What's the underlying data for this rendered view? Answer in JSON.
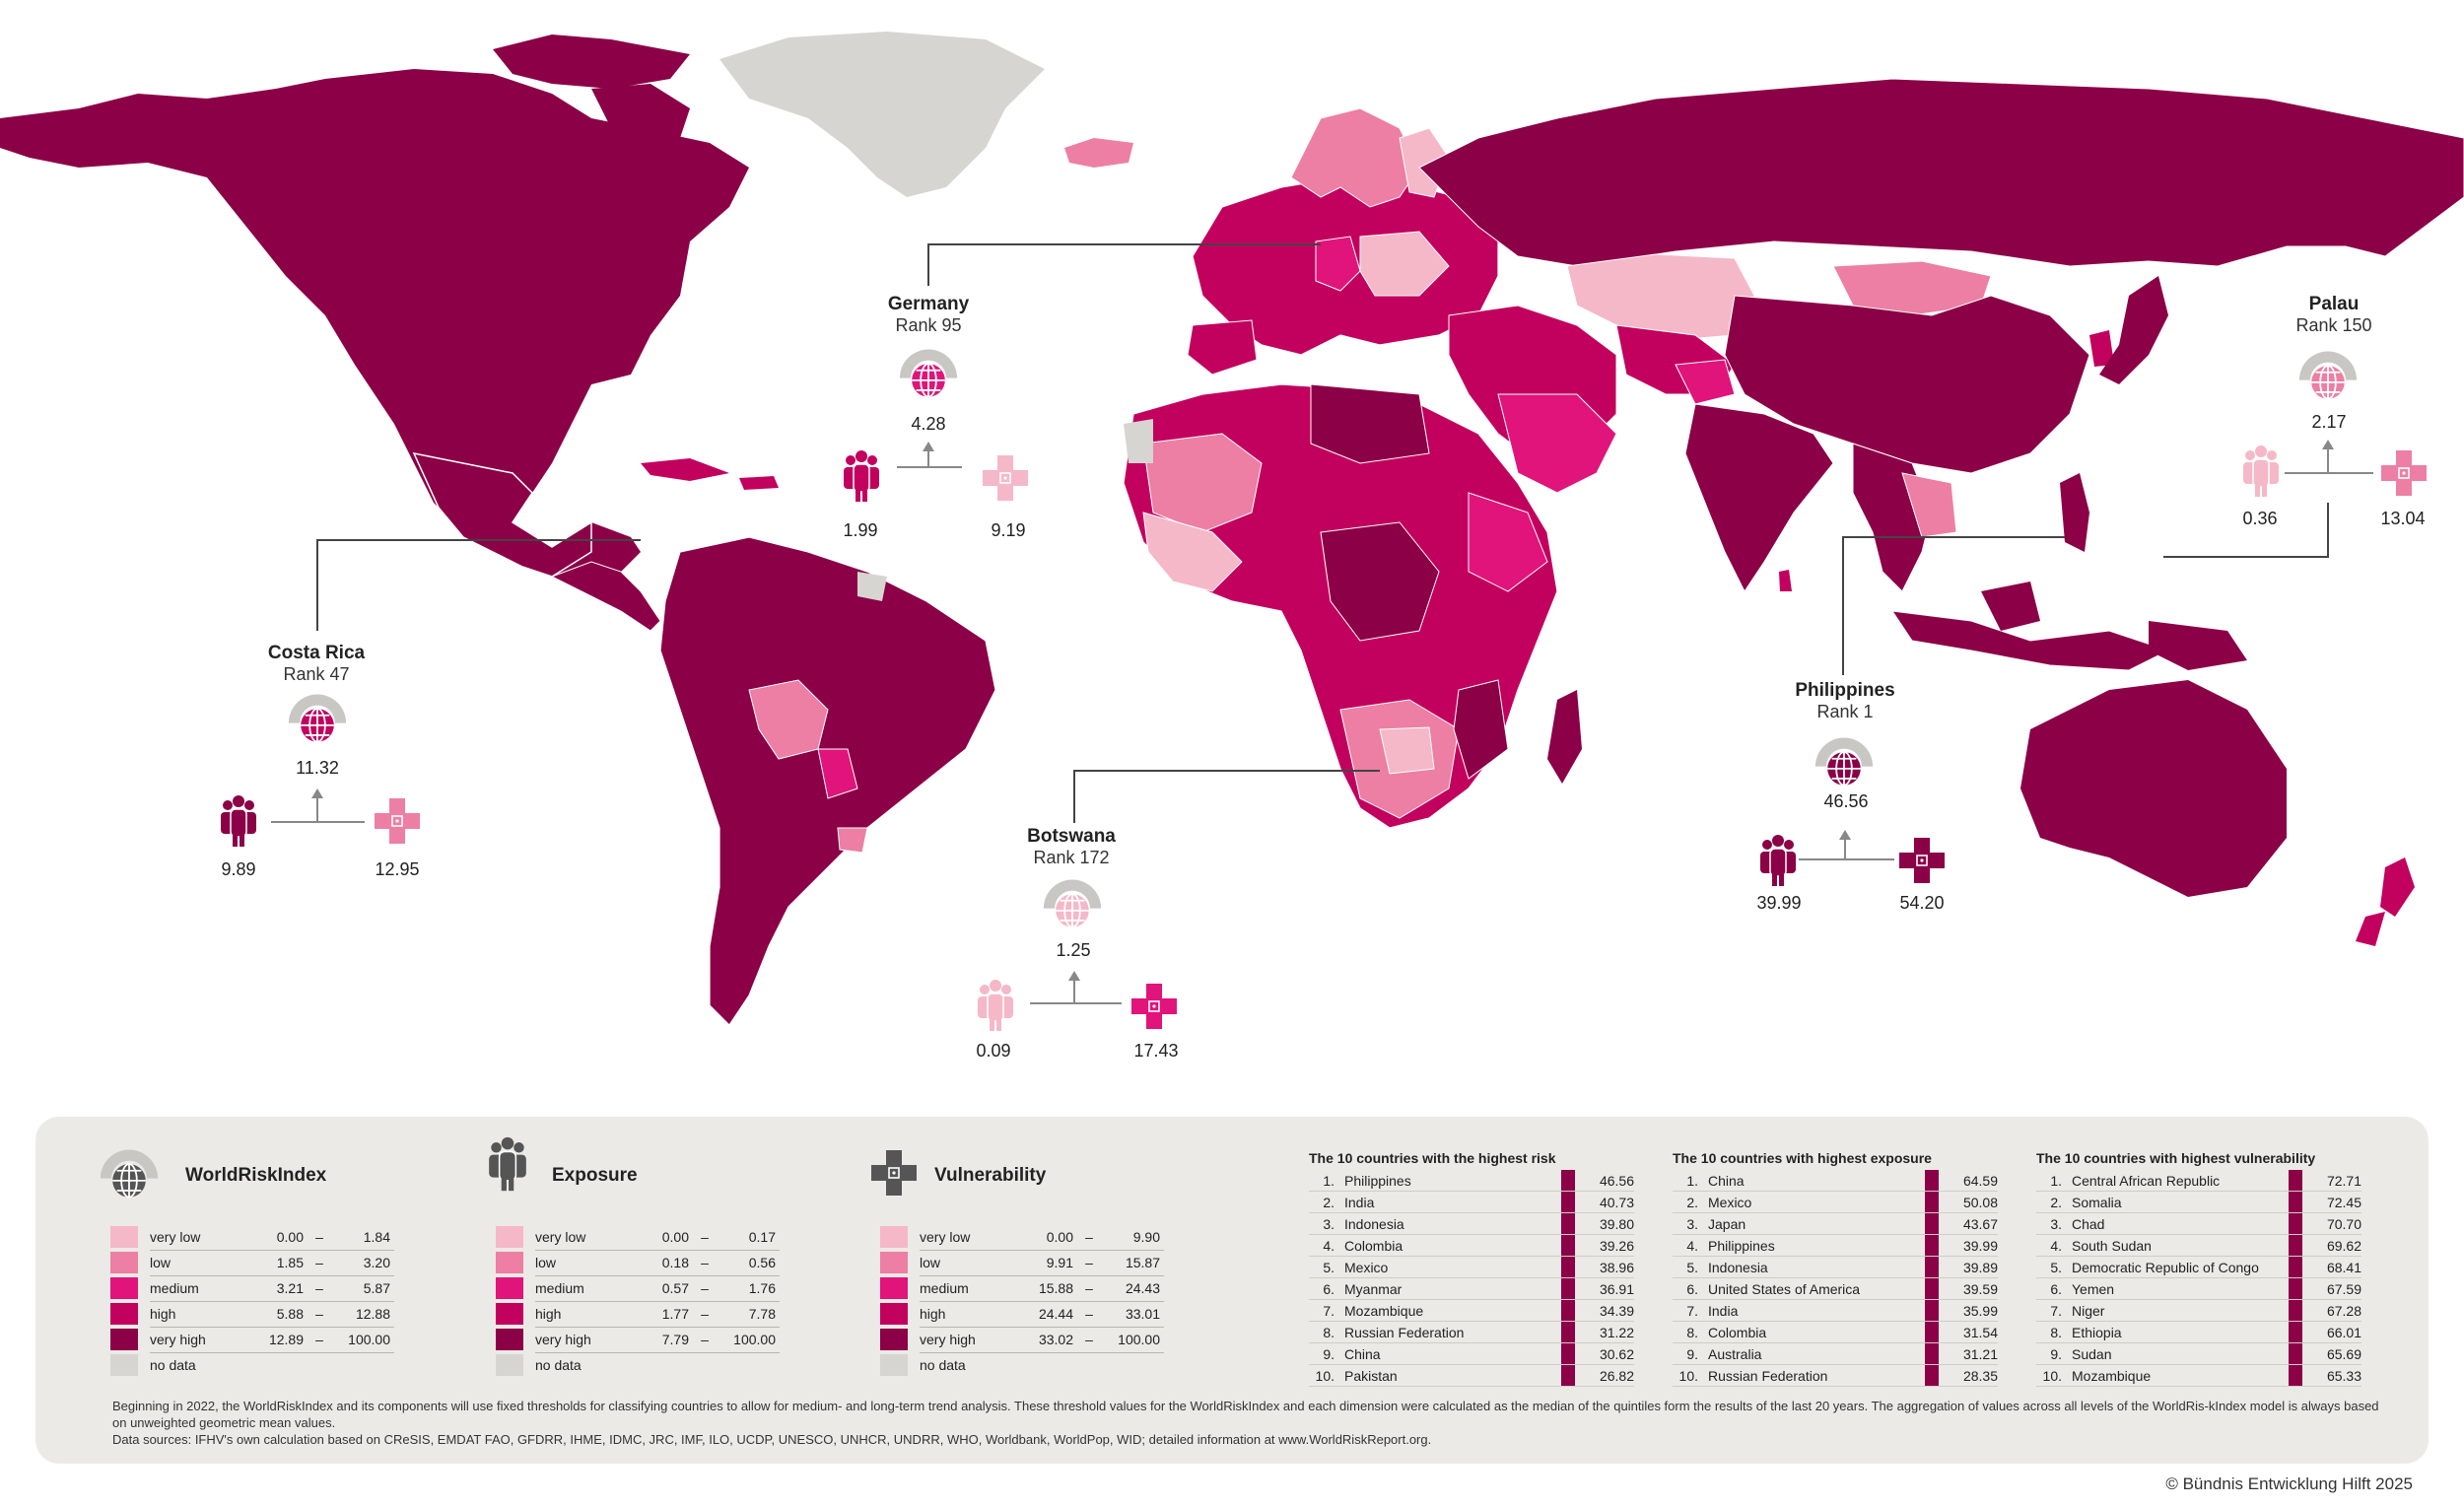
{
  "colors": {
    "very_low": "#f5b8c8",
    "low": "#ec7fa3",
    "medium": "#e0147a",
    "high": "#c2005e",
    "very_high": "#8b0046",
    "no_data": "#d7d5d1"
  },
  "callouts": {
    "germany": {
      "name": "Germany",
      "rank": "Rank 95",
      "wri": "4.28",
      "exposure": "1.99",
      "vulnerability": "9.19"
    },
    "costa_rica": {
      "name": "Costa Rica",
      "rank": "Rank 47",
      "wri": "11.32",
      "exposure": "9.89",
      "vulnerability": "12.95"
    },
    "botswana": {
      "name": "Botswana",
      "rank": "Rank 172",
      "wri": "1.25",
      "exposure": "0.09",
      "vulnerability": "17.43"
    },
    "philippines": {
      "name": "Philippines",
      "rank": "Rank 1",
      "wri": "46.56",
      "exposure": "39.99",
      "vulnerability": "54.20"
    },
    "palau": {
      "name": "Palau",
      "rank": "Rank 150",
      "wri": "2.17",
      "exposure": "0.36",
      "vulnerability": "13.04"
    }
  },
  "legends": {
    "wri": {
      "title": "WorldRiskIndex",
      "rows": [
        {
          "label": "very low",
          "from": "0.00",
          "to": "1.84"
        },
        {
          "label": "low",
          "from": "1.85",
          "to": "3.20"
        },
        {
          "label": "medium",
          "from": "3.21",
          "to": "5.87"
        },
        {
          "label": "high",
          "from": "5.88",
          "to": "12.88"
        },
        {
          "label": "very high",
          "from": "12.89",
          "to": "100.00"
        },
        {
          "label": "no data",
          "from": "",
          "to": ""
        }
      ]
    },
    "exposure": {
      "title": "Exposure",
      "rows": [
        {
          "label": "very low",
          "from": "0.00",
          "to": "0.17"
        },
        {
          "label": "low",
          "from": "0.18",
          "to": "0.56"
        },
        {
          "label": "medium",
          "from": "0.57",
          "to": "1.76"
        },
        {
          "label": "high",
          "from": "1.77",
          "to": "7.78"
        },
        {
          "label": "very high",
          "from": "7.79",
          "to": "100.00"
        },
        {
          "label": "no data",
          "from": "",
          "to": ""
        }
      ]
    },
    "vulnerability": {
      "title": "Vulnerability",
      "rows": [
        {
          "label": "very low",
          "from": "0.00",
          "to": "9.90"
        },
        {
          "label": "low",
          "from": "9.91",
          "to": "15.87"
        },
        {
          "label": "medium",
          "from": "15.88",
          "to": "24.43"
        },
        {
          "label": "high",
          "from": "24.44",
          "to": "33.01"
        },
        {
          "label": "very high",
          "from": "33.02",
          "to": "100.00"
        },
        {
          "label": "no data",
          "from": "",
          "to": ""
        }
      ]
    },
    "dash": "–"
  },
  "top10": {
    "risk": {
      "title": "The 10 countries with the highest risk",
      "rows": [
        {
          "n": "1.",
          "c": "Philippines",
          "v": "46.56"
        },
        {
          "n": "2.",
          "c": "India",
          "v": "40.73"
        },
        {
          "n": "3.",
          "c": "Indonesia",
          "v": "39.80"
        },
        {
          "n": "4.",
          "c": "Colombia",
          "v": "39.26"
        },
        {
          "n": "5.",
          "c": "Mexico",
          "v": "38.96"
        },
        {
          "n": "6.",
          "c": "Myanmar",
          "v": "36.91"
        },
        {
          "n": "7.",
          "c": "Mozambique",
          "v": "34.39"
        },
        {
          "n": "8.",
          "c": "Russian Federation",
          "v": "31.22"
        },
        {
          "n": "9.",
          "c": "China",
          "v": "30.62"
        },
        {
          "n": "10.",
          "c": "Pakistan",
          "v": "26.82"
        }
      ]
    },
    "exposure": {
      "title": "The 10 countries with highest exposure",
      "rows": [
        {
          "n": "1.",
          "c": "China",
          "v": "64.59"
        },
        {
          "n": "2.",
          "c": "Mexico",
          "v": "50.08"
        },
        {
          "n": "3.",
          "c": "Japan",
          "v": "43.67"
        },
        {
          "n": "4.",
          "c": "Philippines",
          "v": "39.99"
        },
        {
          "n": "5.",
          "c": "Indonesia",
          "v": "39.89"
        },
        {
          "n": "6.",
          "c": "United States of America",
          "v": "39.59"
        },
        {
          "n": "7.",
          "c": "India",
          "v": "35.99"
        },
        {
          "n": "8.",
          "c": "Colombia",
          "v": "31.54"
        },
        {
          "n": "9.",
          "c": "Australia",
          "v": "31.21"
        },
        {
          "n": "10.",
          "c": "Russian Federation",
          "v": "28.35"
        }
      ]
    },
    "vulnerability": {
      "title": "The 10 countries with highest vulnerability",
      "rows": [
        {
          "n": "1.",
          "c": "Central African Republic",
          "v": "72.71"
        },
        {
          "n": "2.",
          "c": "Somalia",
          "v": "72.45"
        },
        {
          "n": "3.",
          "c": "Chad",
          "v": "70.70"
        },
        {
          "n": "4.",
          "c": "South Sudan",
          "v": "69.62"
        },
        {
          "n": "5.",
          "c": "Democratic Republic of Congo",
          "v": "68.41"
        },
        {
          "n": "6.",
          "c": "Yemen",
          "v": "67.59"
        },
        {
          "n": "7.",
          "c": "Niger",
          "v": "67.28"
        },
        {
          "n": "8.",
          "c": "Ethiopia",
          "v": "66.01"
        },
        {
          "n": "9.",
          "c": "Sudan",
          "v": "65.69"
        },
        {
          "n": "10.",
          "c": "Mozambique",
          "v": "65.33"
        }
      ]
    }
  },
  "footnote": {
    "line1": "Beginning in 2022, the WorldRiskIndex and its components will use fixed thresholds for classifying countries to allow for medium- and long-term trend analysis. These threshold values for the WorldRiskIndex and each dimension were calculated as the median of the quintiles form the results of the last 20 years. The aggregation of values across all levels of the WorldRis-kIndex model is always based on unweighted geometric mean values.",
    "line2": "Data sources: IFHV's own calculation based on CReSIS, EMDAT FAO, GFDRR, IHME, IDMC, JRC, IMF, ILO, UCDP, UNESCO, UNHCR, UNDRR, WHO, Worldbank, WorldPop, WID; detailed information at www.WorldRiskReport.org."
  },
  "copyright": "© Bündnis Entwicklung Hilft 2025"
}
